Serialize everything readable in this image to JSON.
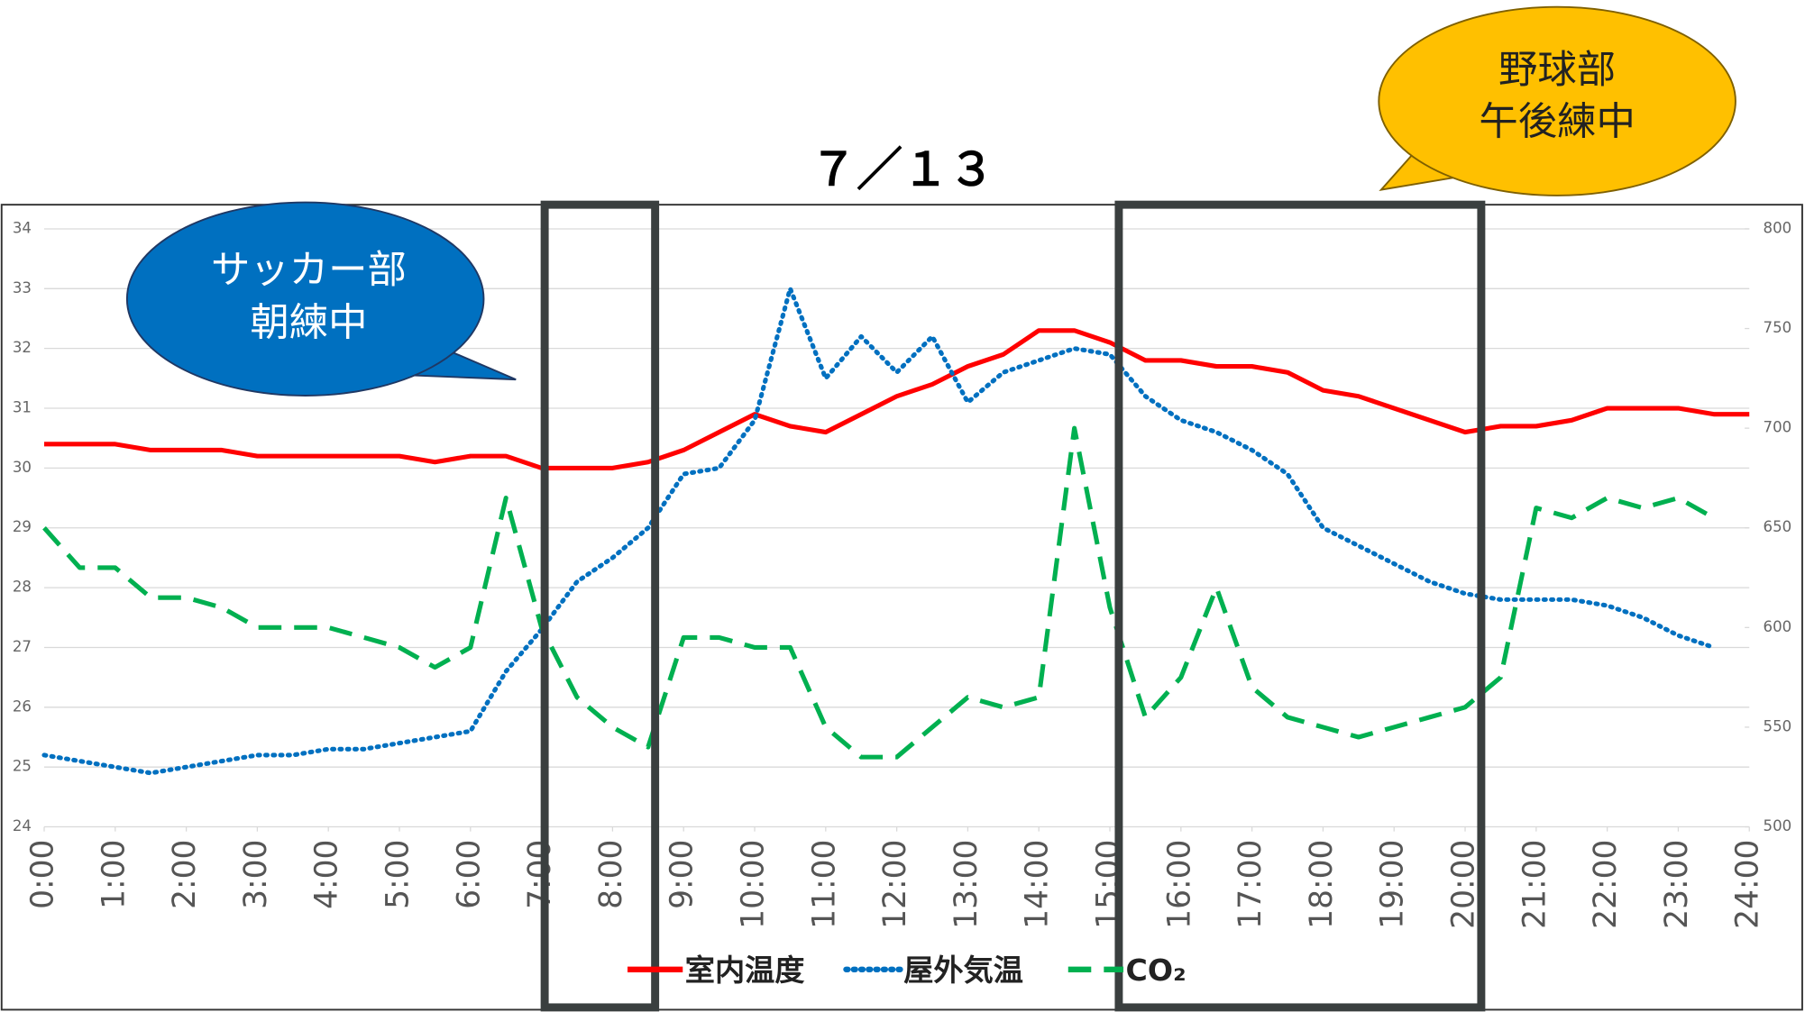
{
  "chart_data": {
    "type": "line",
    "title": "７／１３",
    "x": [
      0,
      0.5,
      1,
      1.5,
      2,
      2.5,
      3,
      3.5,
      4,
      4.5,
      5,
      5.5,
      6,
      6.5,
      7,
      7.5,
      8,
      8.5,
      9,
      9.5,
      10,
      10.5,
      11,
      11.5,
      12,
      12.5,
      13,
      13.5,
      14,
      14.5,
      15,
      15.5,
      16,
      16.5,
      17,
      17.5,
      18,
      18.5,
      19,
      19.5,
      20,
      20.5,
      21,
      21.5,
      22,
      22.5,
      23,
      23.5,
      24
    ],
    "xlim": [
      0,
      24
    ],
    "xticks": [
      {
        "value": 0,
        "label": "0:00"
      },
      {
        "value": 1,
        "label": "1:00"
      },
      {
        "value": 2,
        "label": "2:00"
      },
      {
        "value": 3,
        "label": "3:00"
      },
      {
        "value": 4,
        "label": "4:00"
      },
      {
        "value": 5,
        "label": "5:00"
      },
      {
        "value": 6,
        "label": "6:00"
      },
      {
        "value": 7,
        "label": "7:00"
      },
      {
        "value": 8,
        "label": "8:00"
      },
      {
        "value": 9,
        "label": "9:00"
      },
      {
        "value": 10,
        "label": "10:00"
      },
      {
        "value": 11,
        "label": "11:00"
      },
      {
        "value": 12,
        "label": "12:00"
      },
      {
        "value": 13,
        "label": "13:00"
      },
      {
        "value": 14,
        "label": "14:00"
      },
      {
        "value": 15,
        "label": "15:00"
      },
      {
        "value": 16,
        "label": "16:00"
      },
      {
        "value": 17,
        "label": "17:00"
      },
      {
        "value": 18,
        "label": "18:00"
      },
      {
        "value": 19,
        "label": "19:00"
      },
      {
        "value": 20,
        "label": "20:00"
      },
      {
        "value": 21,
        "label": "21:00"
      },
      {
        "value": 22,
        "label": "22:00"
      },
      {
        "value": 23,
        "label": "23:00"
      },
      {
        "value": 24,
        "label": "24:00"
      }
    ],
    "ylim": [
      24,
      34
    ],
    "yticks": [
      24,
      25,
      26,
      27,
      28,
      29,
      30,
      31,
      32,
      33,
      34
    ],
    "y2lim": [
      500,
      800
    ],
    "y2ticks": [
      500,
      550,
      600,
      650,
      700,
      750,
      800
    ],
    "grid": true,
    "series": [
      {
        "name": "室内温度",
        "color": "#ff0000",
        "style": "solid",
        "values": [
          30.4,
          30.4,
          30.4,
          30.3,
          30.3,
          30.3,
          30.2,
          30.2,
          30.2,
          30.2,
          30.2,
          30.1,
          30.2,
          30.2,
          30.0,
          30.0,
          30.0,
          30.1,
          30.3,
          30.6,
          30.9,
          30.7,
          30.6,
          30.9,
          31.2,
          31.4,
          31.7,
          31.9,
          32.3,
          32.3,
          32.1,
          31.8,
          31.8,
          31.7,
          31.7,
          31.6,
          31.3,
          31.2,
          31.0,
          30.8,
          30.6,
          30.7,
          30.7,
          30.8,
          31.0,
          31.0,
          31.0,
          30.9,
          30.9
        ]
      },
      {
        "name": "屋外気温",
        "color": "#0070c0",
        "style": "dotted",
        "values": [
          25.2,
          25.1,
          25.0,
          24.9,
          25.0,
          25.1,
          25.2,
          25.2,
          25.3,
          25.3,
          25.4,
          25.5,
          25.6,
          26.6,
          27.3,
          28.1,
          28.5,
          29.0,
          29.9,
          30.0,
          30.8,
          33.0,
          31.5,
          32.2,
          31.6,
          32.2,
          31.1,
          31.6,
          31.8,
          32.0,
          31.9,
          31.2,
          30.8,
          30.6,
          30.3,
          29.9,
          29.0,
          28.7,
          28.4,
          28.1,
          27.9,
          27.8,
          27.8,
          27.8,
          27.7,
          27.5,
          27.2,
          27.0,
          null
        ]
      },
      {
        "name": "CO₂",
        "color": "#00b050",
        "style": "dashed",
        "axis": "y2",
        "values": [
          650,
          630,
          630,
          615,
          615,
          610,
          600,
          600,
          600,
          595,
          590,
          580,
          590,
          665,
          600,
          565,
          550,
          540,
          595,
          595,
          590,
          590,
          550,
          535,
          535,
          550,
          565,
          560,
          565,
          700,
          610,
          555,
          575,
          620,
          570,
          555,
          550,
          545,
          550,
          555,
          560,
          575,
          660,
          655,
          665,
          660,
          665,
          655,
          null
        ]
      }
    ],
    "annotations": {
      "morning": [
        "サッカー部",
        "朝練中"
      ],
      "afternoon": [
        "野球部",
        "午後練中"
      ]
    }
  }
}
